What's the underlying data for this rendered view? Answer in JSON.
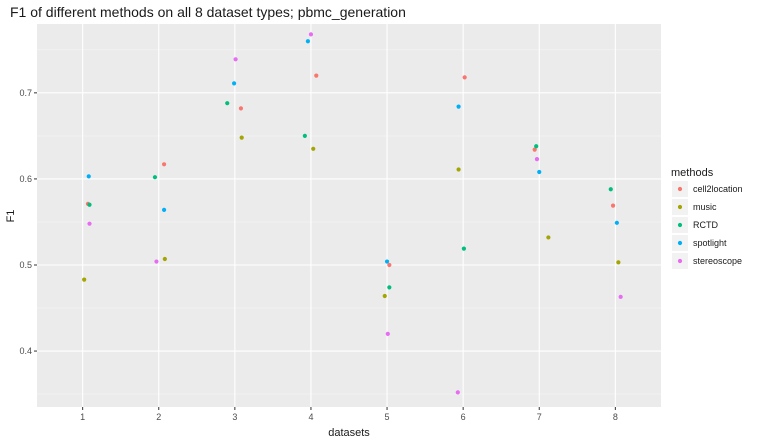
{
  "chart_data": {
    "type": "scatter",
    "title": "F1 of different methods on all 8 dataset types; pbmc_generation",
    "xlabel": "datasets",
    "ylabel": "F1",
    "categories": [
      "1",
      "2",
      "3",
      "4",
      "5",
      "6",
      "7",
      "8"
    ],
    "yticks": [
      "0.4",
      "0.5",
      "0.6",
      "0.7"
    ],
    "ylim": [
      0.335,
      0.78
    ],
    "grid": true,
    "legend": {
      "title": "methods",
      "placement": "right"
    },
    "series": [
      {
        "name": "cell2location",
        "color": "#F8766D",
        "points": [
          {
            "x": 1.07,
            "y": 0.571
          },
          {
            "x": 2.07,
            "y": 0.617
          },
          {
            "x": 3.08,
            "y": 0.682
          },
          {
            "x": 4.07,
            "y": 0.72
          },
          {
            "x": 5.03,
            "y": 0.5
          },
          {
            "x": 6.02,
            "y": 0.718
          },
          {
            "x": 6.94,
            "y": 0.634
          },
          {
            "x": 7.97,
            "y": 0.569
          }
        ]
      },
      {
        "name": "music",
        "color": "#A3A500",
        "points": [
          {
            "x": 1.02,
            "y": 0.483
          },
          {
            "x": 2.08,
            "y": 0.507
          },
          {
            "x": 3.09,
            "y": 0.648
          },
          {
            "x": 4.03,
            "y": 0.635
          },
          {
            "x": 4.97,
            "y": 0.464
          },
          {
            "x": 5.94,
            "y": 0.611
          },
          {
            "x": 7.12,
            "y": 0.532
          },
          {
            "x": 8.04,
            "y": 0.503
          }
        ]
      },
      {
        "name": "RCTD",
        "color": "#00BF7D",
        "points": [
          {
            "x": 1.09,
            "y": 0.57
          },
          {
            "x": 1.95,
            "y": 0.602
          },
          {
            "x": 2.9,
            "y": 0.688
          },
          {
            "x": 3.92,
            "y": 0.65
          },
          {
            "x": 5.03,
            "y": 0.474
          },
          {
            "x": 6.01,
            "y": 0.519
          },
          {
            "x": 6.96,
            "y": 0.638
          },
          {
            "x": 7.94,
            "y": 0.588
          }
        ]
      },
      {
        "name": "spotlight",
        "color": "#00B0F6",
        "points": [
          {
            "x": 1.08,
            "y": 0.603
          },
          {
            "x": 2.07,
            "y": 0.564
          },
          {
            "x": 2.99,
            "y": 0.711
          },
          {
            "x": 3.96,
            "y": 0.76
          },
          {
            "x": 5.0,
            "y": 0.504
          },
          {
            "x": 5.94,
            "y": 0.684
          },
          {
            "x": 7.0,
            "y": 0.608
          },
          {
            "x": 8.02,
            "y": 0.549
          }
        ]
      },
      {
        "name": "stereoscope",
        "color": "#E76BF3",
        "points": [
          {
            "x": 1.09,
            "y": 0.548
          },
          {
            "x": 1.97,
            "y": 0.504
          },
          {
            "x": 3.01,
            "y": 0.739
          },
          {
            "x": 4.0,
            "y": 0.768
          },
          {
            "x": 5.01,
            "y": 0.42
          },
          {
            "x": 5.93,
            "y": 0.352
          },
          {
            "x": 6.97,
            "y": 0.623
          },
          {
            "x": 8.07,
            "y": 0.463
          }
        ]
      }
    ]
  }
}
